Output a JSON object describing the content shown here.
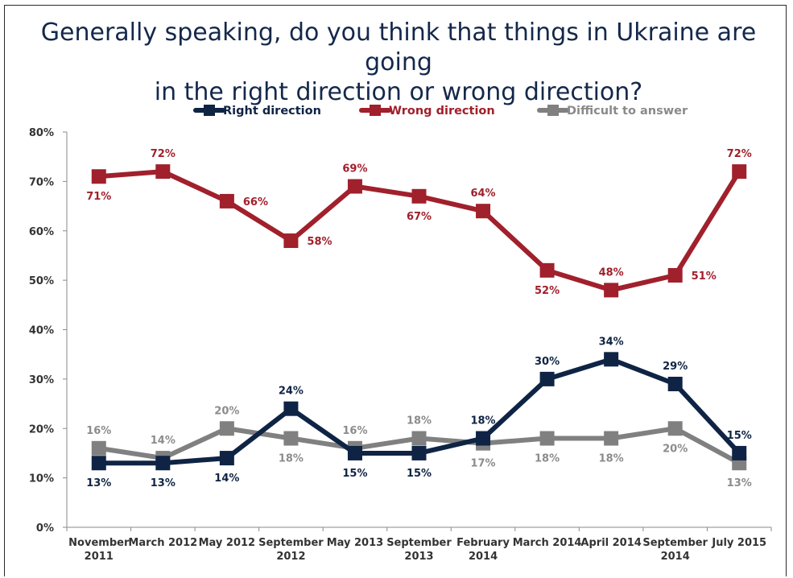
{
  "title_line1": "Generally speaking, do you think that things in Ukraine are going",
  "title_line2": "in the right direction or wrong direction?",
  "chart_data": {
    "type": "line",
    "title": "Generally speaking, do you think that things in Ukraine are going in the right direction or wrong direction?",
    "categories": [
      [
        "November",
        "2011"
      ],
      [
        "March 2012"
      ],
      [
        "May 2012"
      ],
      [
        "September",
        "2012"
      ],
      [
        "May 2013"
      ],
      [
        "September",
        "2013"
      ],
      [
        "February",
        "2014"
      ],
      [
        "March 2014"
      ],
      [
        "April 2014"
      ],
      [
        "September",
        "2014"
      ],
      [
        "July 2015"
      ]
    ],
    "y_ticks": [
      "0%",
      "10%",
      "20%",
      "30%",
      "40%",
      "50%",
      "60%",
      "70%",
      "80%"
    ],
    "ylim": [
      0,
      80
    ],
    "grid": false,
    "legend_position": "top",
    "series": [
      {
        "name": "Right direction",
        "color": "#0f2444",
        "values": [
          13,
          13,
          14,
          24,
          15,
          15,
          18,
          30,
          34,
          29,
          15
        ],
        "labels": [
          "13%",
          "13%",
          "14%",
          "24%",
          "15%",
          "15%",
          "18%",
          "30%",
          "34%",
          "29%",
          "15%"
        ],
        "label_pos": [
          "below",
          "below",
          "below",
          "above",
          "below",
          "below",
          "above",
          "above",
          "above",
          "above",
          "above"
        ]
      },
      {
        "name": "Wrong direction",
        "color": "#a0202c",
        "values": [
          71,
          72,
          66,
          58,
          69,
          67,
          64,
          52,
          48,
          51,
          72
        ],
        "labels": [
          "71%",
          "72%",
          "66%",
          "58%",
          "69%",
          "67%",
          "64%",
          "52%",
          "48%",
          "51%",
          "72%"
        ],
        "label_pos": [
          "below",
          "above",
          "right",
          "right",
          "above",
          "below",
          "above",
          "below",
          "above",
          "right",
          "above"
        ]
      },
      {
        "name": "Difficult to answer",
        "color": "#808080",
        "values": [
          16,
          14,
          20,
          18,
          16,
          18,
          17,
          18,
          18,
          20,
          13
        ],
        "labels": [
          "16%",
          "14%",
          "20%",
          "18%",
          "16%",
          "18%",
          "17%",
          "18%",
          "18%",
          "20%",
          "13%"
        ],
        "label_pos": [
          "above",
          "above",
          "above",
          "below",
          "above",
          "above",
          "below",
          "below",
          "below",
          "below",
          "below"
        ]
      }
    ]
  }
}
